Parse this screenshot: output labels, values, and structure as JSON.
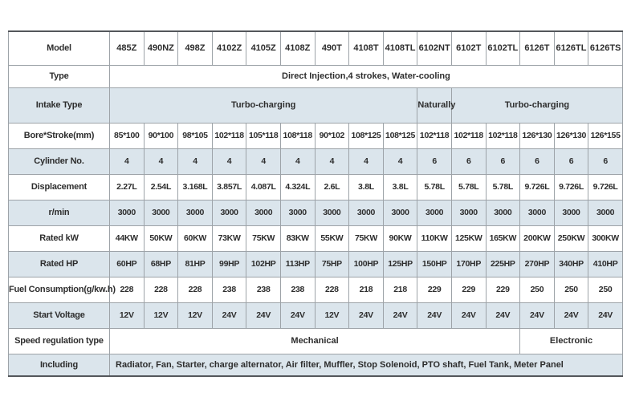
{
  "colors": {
    "row_shade": "#dbe5ec",
    "grid_line": "#9da3a8",
    "outer_line": "#54575b",
    "text": "#2d2d2d"
  },
  "table": {
    "corner_label": "Model",
    "models": [
      "485Z",
      "490NZ",
      "498Z",
      "4102Z",
      "4105Z",
      "4108Z",
      "490T",
      "4108T",
      "4108TL",
      "6102NT",
      "6102T",
      "6102TL",
      "6126T",
      "6126TL",
      "6126TS"
    ],
    "rows": [
      {
        "label": "Type",
        "merged": [
          {
            "text": "Direct Injection,4 strokes, Water-cooling",
            "span": 15
          }
        ]
      },
      {
        "label": "Intake Type",
        "shaded": true,
        "merged": [
          {
            "text": "Turbo-charging",
            "span": 9
          },
          {
            "text": "Naturally",
            "span": 1
          },
          {
            "text": "Turbo-charging",
            "span": 5
          }
        ]
      },
      {
        "label": "Bore*Stroke(mm)",
        "values": [
          "85*100",
          "90*100",
          "98*105",
          "102*118",
          "105*118",
          "108*118",
          "90*102",
          "108*125",
          "108*125",
          "102*118",
          "102*118",
          "102*118",
          "126*130",
          "126*130",
          "126*155"
        ]
      },
      {
        "label": "Cylinder No.",
        "shaded": true,
        "values": [
          "4",
          "4",
          "4",
          "4",
          "4",
          "4",
          "4",
          "4",
          "4",
          "6",
          "6",
          "6",
          "6",
          "6",
          "6"
        ]
      },
      {
        "label": "Displacement",
        "values": [
          "2.27L",
          "2.54L",
          "3.168L",
          "3.857L",
          "4.087L",
          "4.324L",
          "2.6L",
          "3.8L",
          "3.8L",
          "5.78L",
          "5.78L",
          "5.78L",
          "9.726L",
          "9.726L",
          "9.726L"
        ]
      },
      {
        "label": "r/min",
        "shaded": true,
        "values": [
          "3000",
          "3000",
          "3000",
          "3000",
          "3000",
          "3000",
          "3000",
          "3000",
          "3000",
          "3000",
          "3000",
          "3000",
          "3000",
          "3000",
          "3000"
        ]
      },
      {
        "label": "Rated kW",
        "values": [
          "44KW",
          "50KW",
          "60KW",
          "73KW",
          "75KW",
          "83KW",
          "55KW",
          "75KW",
          "90KW",
          "110KW",
          "125KW",
          "165KW",
          "200KW",
          "250KW",
          "300KW"
        ]
      },
      {
        "label": "Rated HP",
        "shaded": true,
        "values": [
          "60HP",
          "68HP",
          "81HP",
          "99HP",
          "102HP",
          "113HP",
          "75HP",
          "100HP",
          "125HP",
          "150HP",
          "170HP",
          "225HP",
          "270HP",
          "340HP",
          "410HP"
        ]
      },
      {
        "label": "Fuel Consumption(g/kw.h)",
        "values": [
          "228",
          "228",
          "228",
          "238",
          "238",
          "238",
          "228",
          "218",
          "218",
          "229",
          "229",
          "229",
          "250",
          "250",
          "250"
        ]
      },
      {
        "label": "Start Voltage",
        "shaded": true,
        "values": [
          "12V",
          "12V",
          "12V",
          "24V",
          "24V",
          "24V",
          "12V",
          "24V",
          "24V",
          "24V",
          "24V",
          "24V",
          "24V",
          "24V",
          "24V"
        ]
      },
      {
        "label": "Speed regulation type",
        "merged": [
          {
            "text": "Mechanical",
            "span": 12
          },
          {
            "text": "Electronic",
            "span": 3
          }
        ]
      },
      {
        "label": "Including",
        "shaded": true,
        "align": "left",
        "merged": [
          {
            "text": "Radiator, Fan, Starter, charge alternator, Air filter, Muffler, Stop Solenoid, PTO shaft, Fuel Tank, Meter Panel",
            "span": 15
          }
        ]
      }
    ]
  }
}
